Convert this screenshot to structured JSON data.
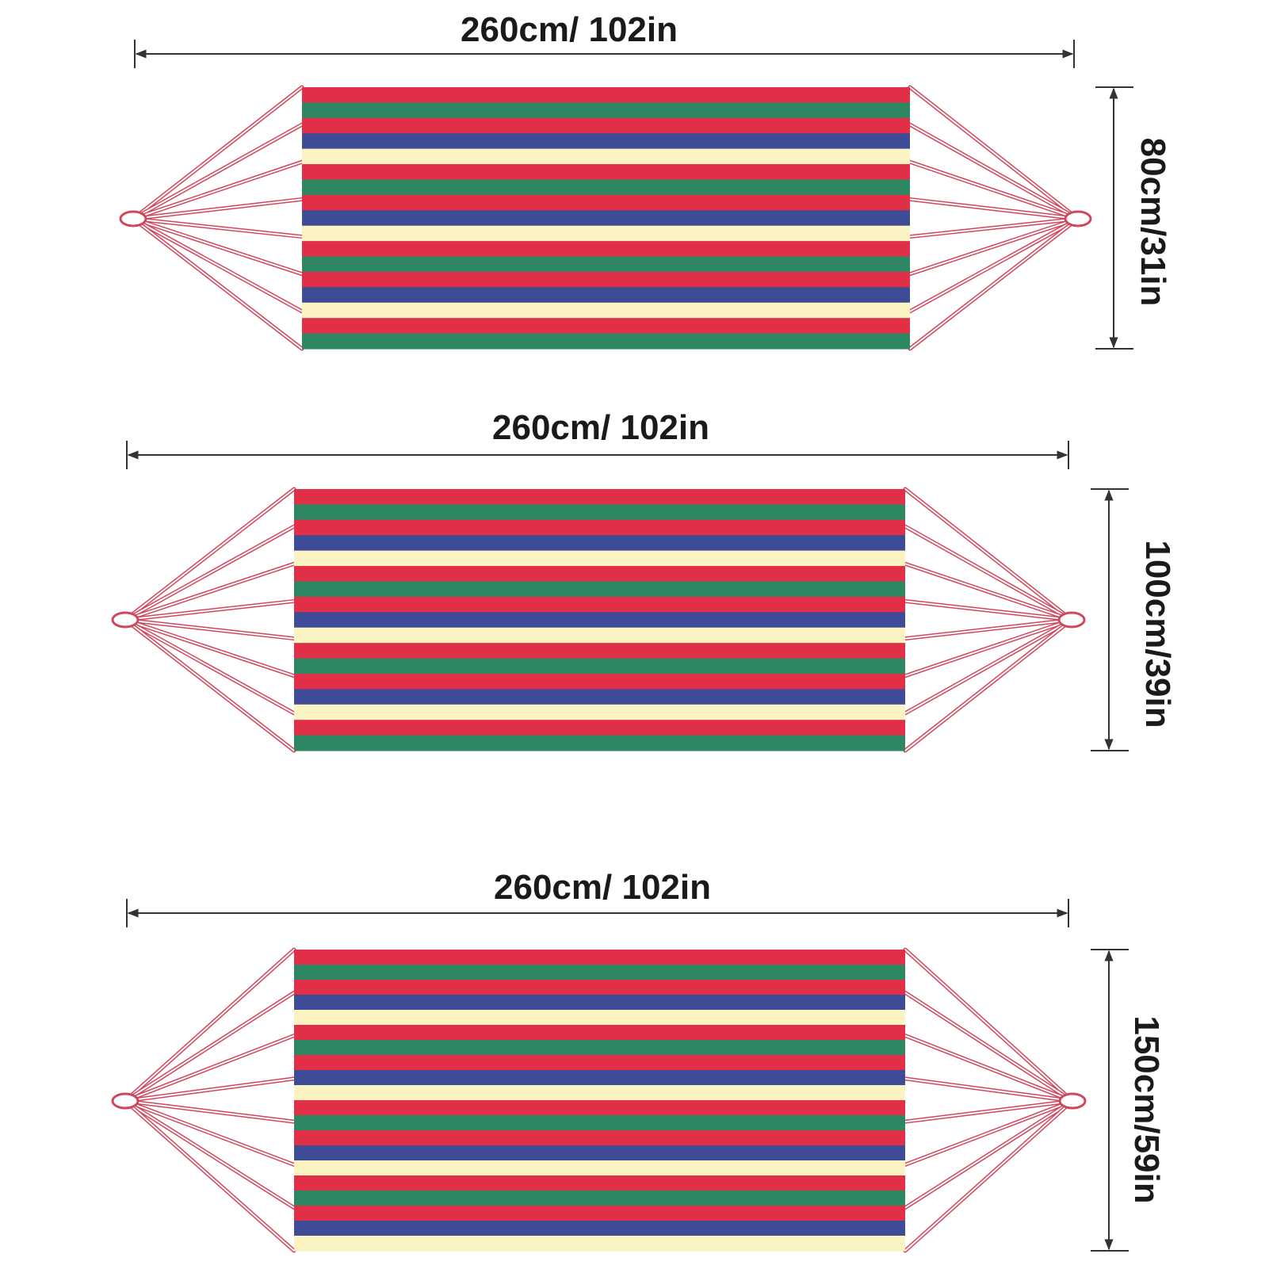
{
  "colors": {
    "red": "#e02f47",
    "green": "#2e8763",
    "blue": "#3e4b97",
    "cream": "#fbf3c2",
    "rope": "#d0475c"
  },
  "stripe_pattern": [
    "red",
    "green",
    "red",
    "blue",
    "cream"
  ],
  "hammocks": [
    {
      "length_label": "260cm/ 102in",
      "width_label": "80cm/31in"
    },
    {
      "length_label": "260cm/ 102in",
      "width_label": "100cm/39in"
    },
    {
      "length_label": "260cm/ 102in",
      "width_label": "150cm/59in"
    }
  ]
}
